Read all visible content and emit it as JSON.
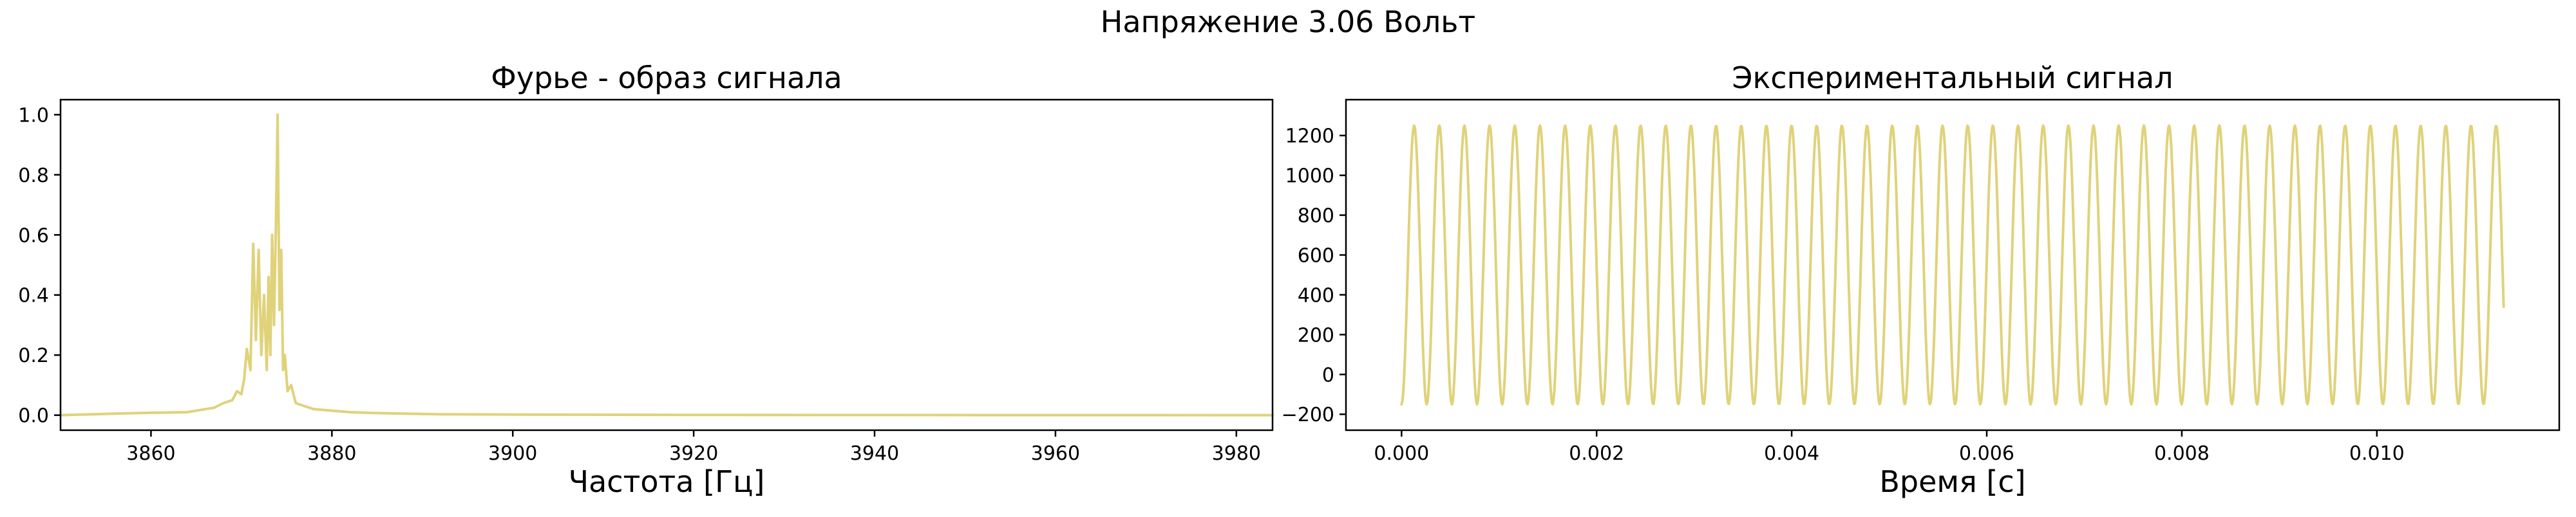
{
  "figure": {
    "suptitle": "Напряжение 3.06 Вольт",
    "line_color": "#e0d27a"
  },
  "chart_data": [
    {
      "type": "line",
      "title": "Фурье - образ сигнала",
      "xlabel": "Частота [Гц]",
      "ylabel": "",
      "xlim": [
        3850,
        3984
      ],
      "ylim": [
        -0.05,
        1.05
      ],
      "xticks": [
        3860,
        3880,
        3900,
        3920,
        3940,
        3960,
        3980
      ],
      "yticks": [
        0.0,
        0.2,
        0.4,
        0.6,
        0.8,
        1.0
      ],
      "xtick_labels": [
        "3860",
        "3880",
        "3900",
        "3920",
        "3940",
        "3960",
        "3980"
      ],
      "ytick_labels": [
        "0.0",
        "0.2",
        "0.4",
        "0.6",
        "0.8",
        "1.0"
      ],
      "grid": false,
      "series": [
        {
          "x": [
            3850,
            3856,
            3860,
            3864,
            3866,
            3867,
            3868,
            3869,
            3869.5,
            3870,
            3870.3,
            3870.6,
            3871,
            3871.3,
            3871.6,
            3871.9,
            3872.2,
            3872.5,
            3872.8,
            3873,
            3873.2,
            3873.4,
            3873.6,
            3873.8,
            3874,
            3874.2,
            3874.4,
            3874.6,
            3874.8,
            3875.1,
            3875.5,
            3876,
            3877,
            3878,
            3880,
            3882,
            3885,
            3888,
            3892,
            3900,
            3920,
            3940,
            3960,
            3984
          ],
          "y": [
            0.0,
            0.005,
            0.008,
            0.01,
            0.02,
            0.025,
            0.04,
            0.05,
            0.08,
            0.07,
            0.12,
            0.22,
            0.15,
            0.57,
            0.25,
            0.55,
            0.2,
            0.4,
            0.15,
            0.46,
            0.2,
            0.6,
            0.3,
            0.62,
            1.0,
            0.35,
            0.55,
            0.15,
            0.2,
            0.08,
            0.1,
            0.04,
            0.03,
            0.02,
            0.015,
            0.01,
            0.007,
            0.005,
            0.003,
            0.002,
            0.001,
            0.0005,
            0.0003,
            0.0
          ]
        }
      ]
    },
    {
      "type": "line",
      "title": "Экспериментальный сигнал",
      "xlabel": "Время [с]",
      "ylabel": "",
      "xlim": [
        -0.00057,
        0.01187
      ],
      "ylim": [
        -280,
        1380
      ],
      "xticks": [
        0.0,
        0.002,
        0.004,
        0.006,
        0.008,
        0.01
      ],
      "yticks": [
        -200,
        0,
        200,
        400,
        600,
        800,
        1000,
        1200
      ],
      "xtick_labels": [
        "0.000",
        "0.002",
        "0.004",
        "0.006",
        "0.008",
        "0.010"
      ],
      "ytick_labels": [
        "−200",
        "0",
        "200",
        "400",
        "600",
        "800",
        "1000",
        "1200"
      ],
      "grid": false,
      "signal": {
        "t_start": 0.0,
        "t_end": 0.0113,
        "period_s": 0.000258,
        "y_min": -150,
        "y_max": 1250
      }
    }
  ]
}
